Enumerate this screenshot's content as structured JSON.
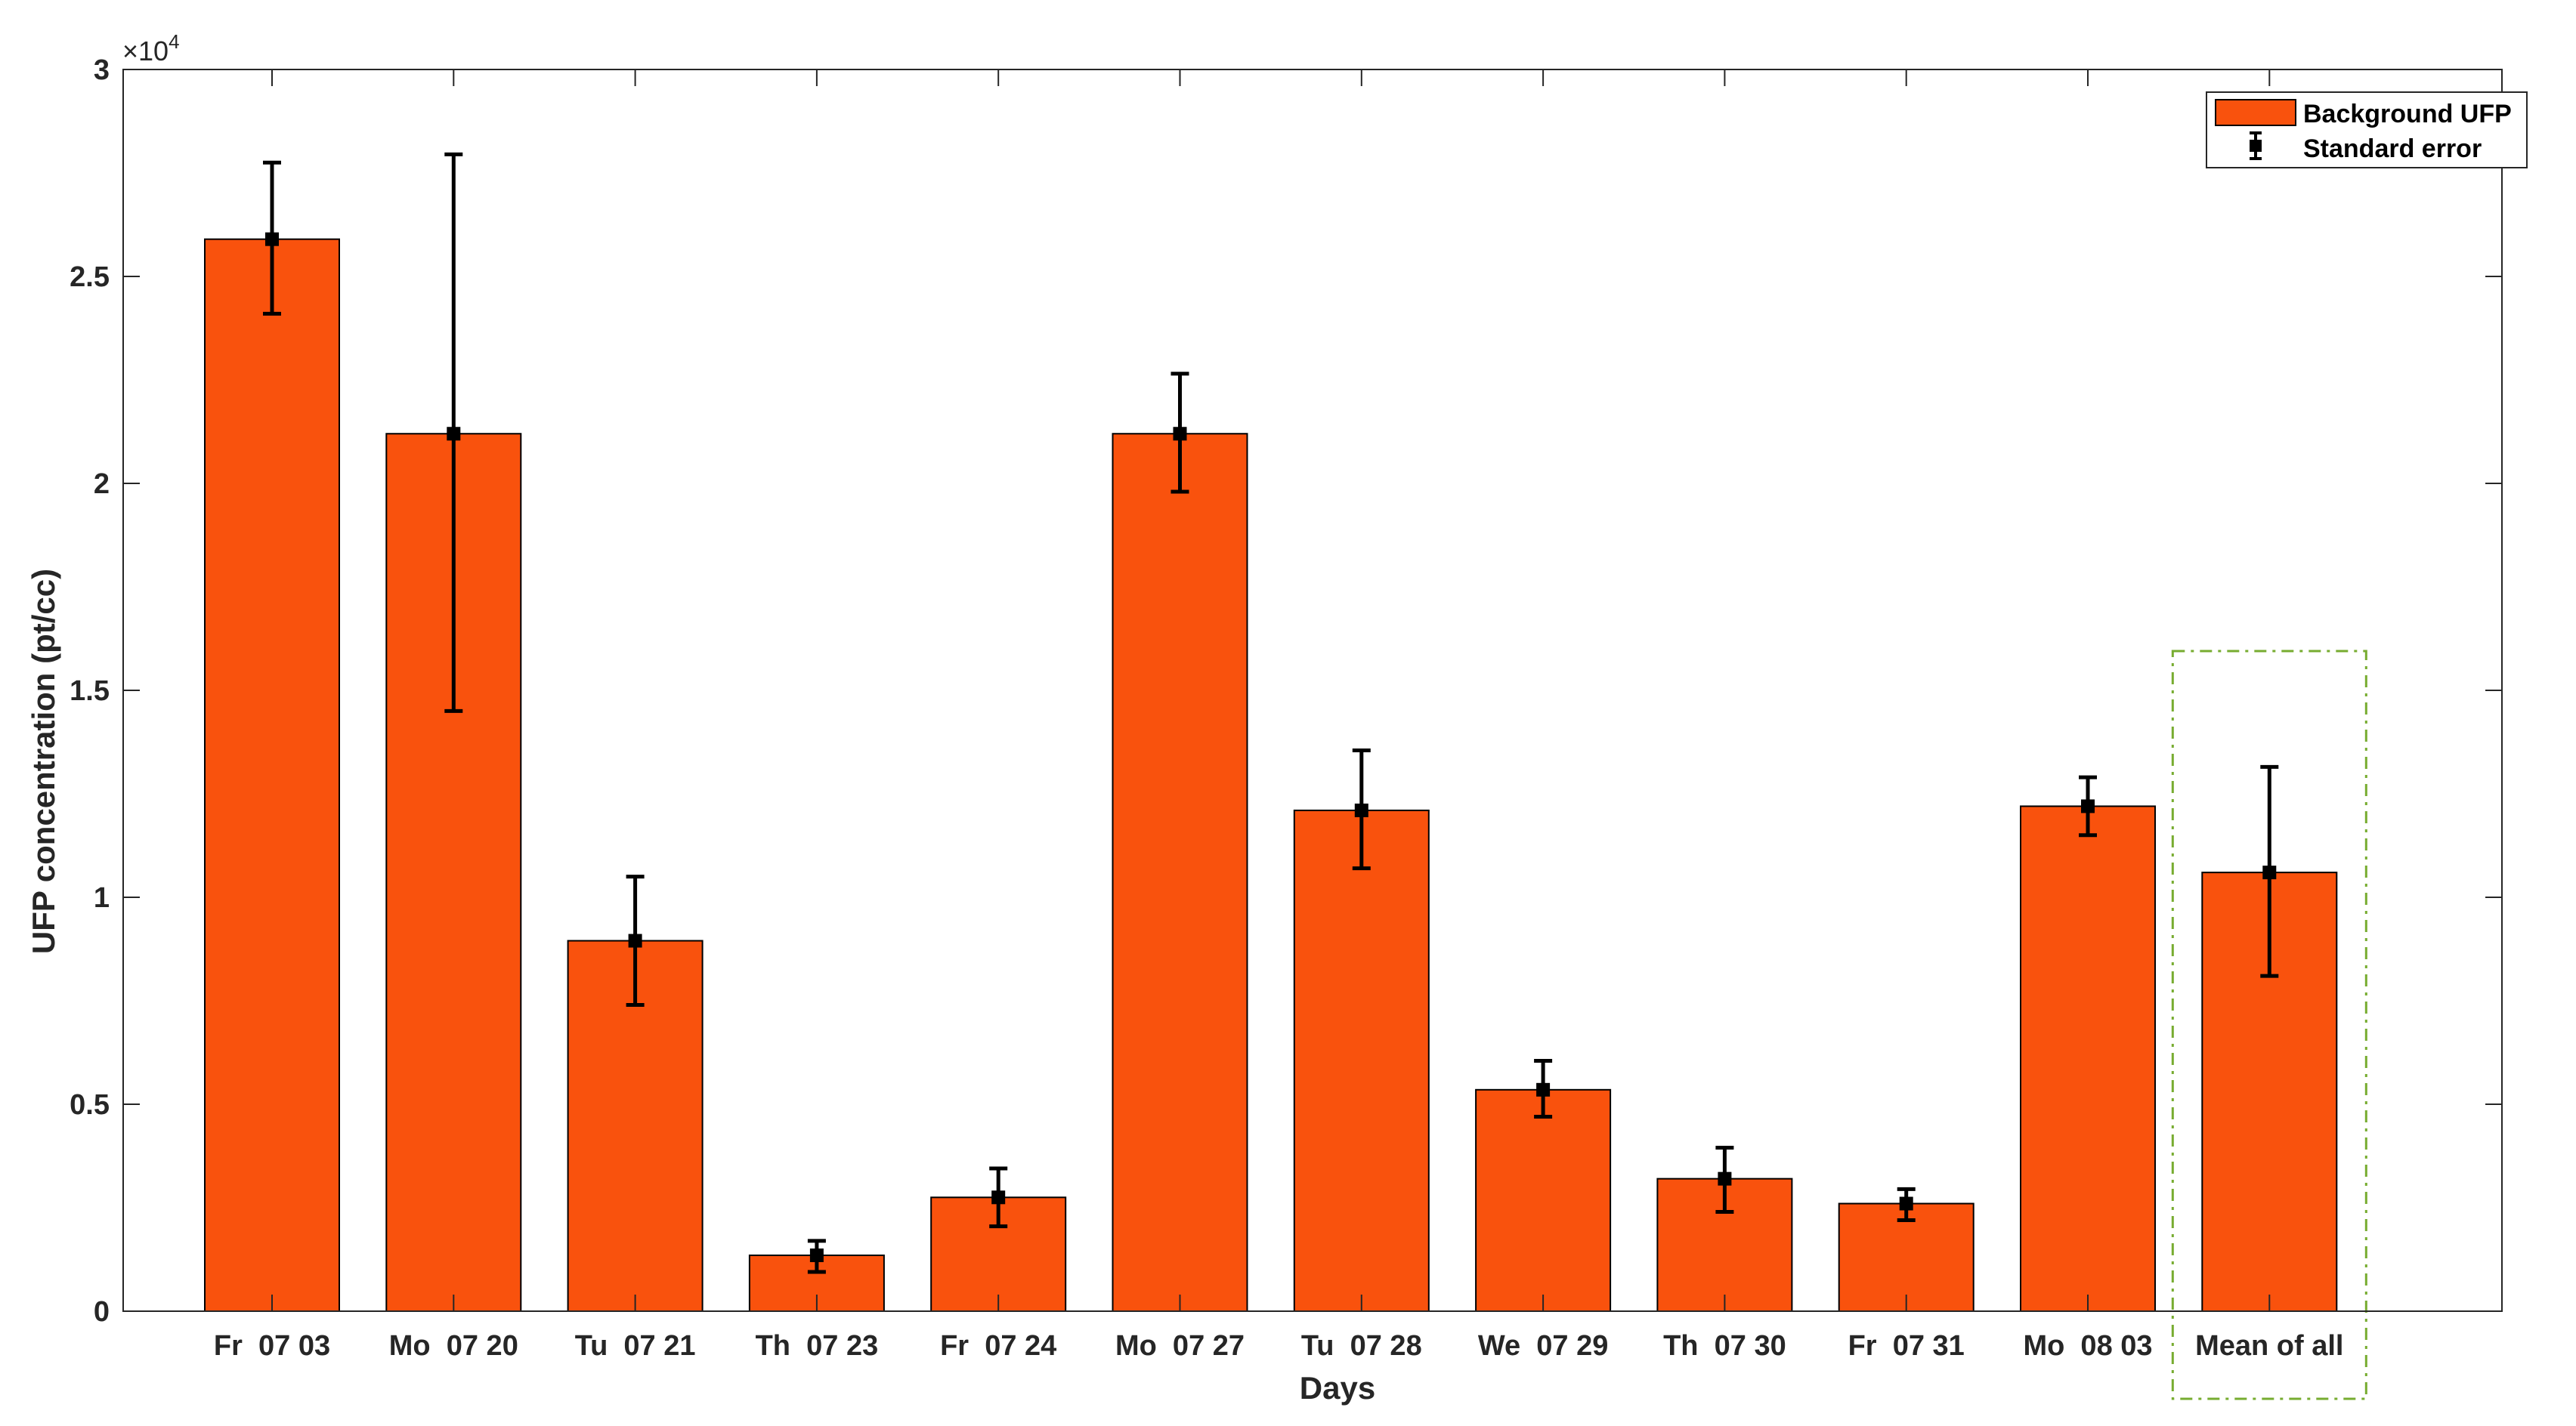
{
  "chart_data": {
    "type": "bar",
    "xlabel": "Days",
    "ylabel": "UFP concentration (pt/cc)",
    "exponent_label": "×10",
    "exponent_power": "4",
    "ylim": [
      0,
      30000
    ],
    "yticks": [
      0,
      5000,
      10000,
      15000,
      20000,
      25000,
      30000
    ],
    "ytick_labels": [
      "0",
      "0.5",
      "1",
      "1.5",
      "2",
      "2.5",
      "3"
    ],
    "categories": [
      "Fr  07 03",
      "Mo  07 20",
      "Tu  07 21",
      "Th  07 23",
      "Fr  07 24",
      "Mo  07 27",
      "Tu  07 28",
      "We  07 29",
      "Th  07 30",
      "Fr  07 31",
      "Mo  08 03",
      "Mean of all"
    ],
    "series": [
      {
        "name": "Background UFP",
        "values": [
          25900,
          21200,
          8950,
          1350,
          2750,
          21200,
          12100,
          5350,
          3200,
          2600,
          12200,
          10600
        ],
        "error_low": [
          24100,
          14500,
          7400,
          950,
          2050,
          19800,
          10700,
          4700,
          2400,
          2200,
          11500,
          8100
        ],
        "error_high": [
          27750,
          27950,
          10500,
          1700,
          3450,
          22650,
          13550,
          6050,
          3950,
          2950,
          12900,
          13150
        ]
      }
    ],
    "error_bar_name": "Standard error",
    "legend_position": "top-right",
    "grid": false,
    "highlighted_category": "Mean of all"
  },
  "colors": {
    "bar_fill": "#f9520d",
    "bar_edge": "#000000",
    "error_bar": "#000000",
    "highlight_box": "#77ac30",
    "axis": "#262626"
  }
}
